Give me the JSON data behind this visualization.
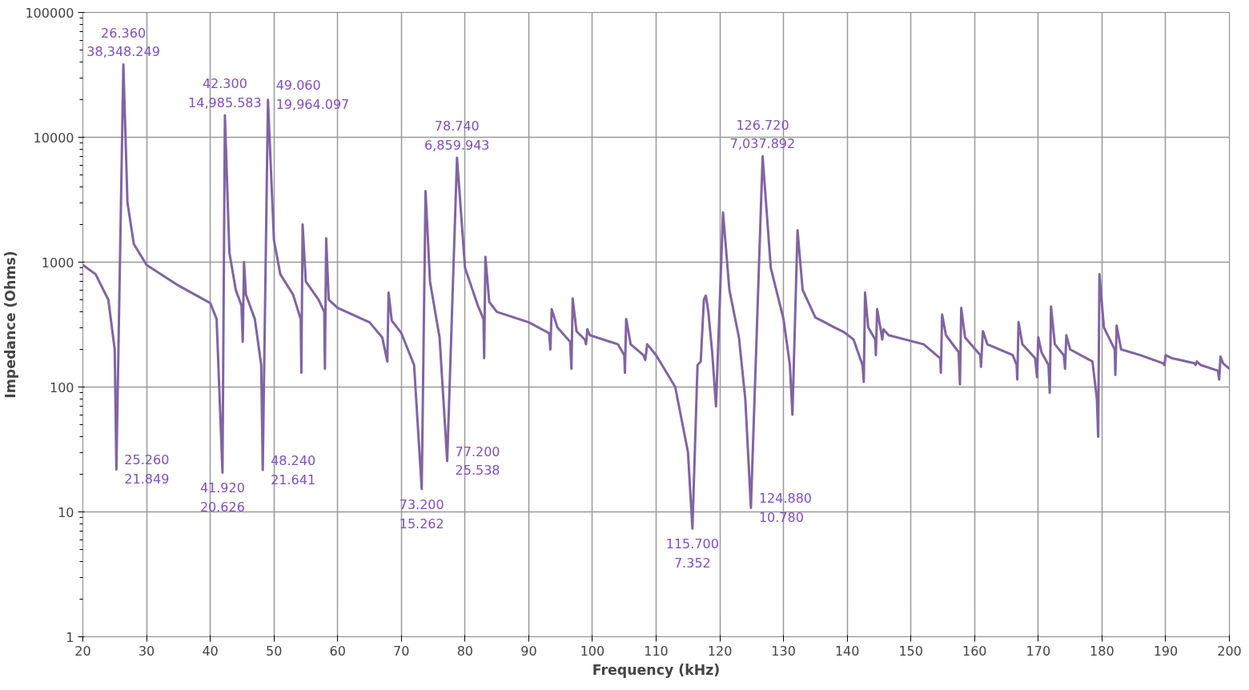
{
  "chart_data": {
    "type": "line",
    "xlabel": "Frequency (kHz)",
    "ylabel": "Impedance (Ohms)",
    "log": "y",
    "grid": true,
    "marker": "none",
    "line_style": "solid",
    "xlim": [
      20,
      200
    ],
    "xticks": [
      20,
      30,
      40,
      50,
      60,
      70,
      80,
      90,
      100,
      110,
      120,
      130,
      140,
      150,
      160,
      170,
      180,
      190,
      200
    ],
    "ylim": [
      1,
      100000
    ],
    "yticks": [
      1,
      10,
      100,
      1000,
      10000,
      100000
    ],
    "x": [
      20,
      22,
      24,
      25,
      25.26,
      26.36,
      27,
      28,
      30,
      35,
      40,
      41,
      41.92,
      42.3,
      43,
      44,
      44.9,
      45.1,
      45.3,
      45.6,
      47,
      48,
      48.24,
      49.06,
      50,
      51,
      53,
      54.2,
      54.3,
      54.5,
      55,
      57,
      57.9,
      58,
      58.2,
      58.6,
      60,
      65,
      67,
      67.8,
      68,
      68.5,
      70,
      72,
      73.2,
      73.8,
      74.5,
      76,
      77.2,
      78.74,
      80,
      82,
      82.9,
      83.0,
      83.2,
      83.8,
      85,
      90,
      93.2,
      93.4,
      93.6,
      94.5,
      96.5,
      96.7,
      96.9,
      97.5,
      98.8,
      99.0,
      99.2,
      99.6,
      104,
      105,
      105.1,
      105.3,
      106,
      108,
      108.3,
      108.6,
      110,
      113,
      115,
      115.7,
      116.5,
      117,
      117.5,
      117.8,
      118.2,
      118.8,
      119.4,
      120.5,
      121.5,
      123,
      124,
      124.88,
      126.72,
      128,
      130,
      131,
      131.4,
      132.2,
      133,
      135,
      136,
      138,
      139.5,
      141,
      142.4,
      142.6,
      142.8,
      143.3,
      144.4,
      144.5,
      144.7,
      145.3,
      145.5,
      145.7,
      146.5,
      152,
      154.6,
      154.7,
      154.9,
      155.5,
      157.5,
      157.7,
      157.9,
      158.5,
      160.9,
      161,
      161.3,
      162,
      166,
      166.6,
      166.7,
      166.9,
      167.5,
      169.5,
      169.8,
      170,
      170.5,
      171.6,
      171.8,
      172,
      172.6,
      174,
      174.2,
      174.4,
      175,
      178.5,
      179.2,
      179.4,
      179.6,
      180.3,
      182,
      182.1,
      182.3,
      183,
      186,
      189.6,
      189.8,
      190,
      191,
      194.5,
      194.7,
      194.9,
      195.5,
      198.2,
      198.4,
      198.6,
      199,
      200
    ],
    "series": [
      {
        "color": "#8064a2",
        "values": [
          950,
          800,
          500,
          200,
          21.849,
          38348.249,
          3000,
          1400,
          950,
          650,
          470,
          350,
          20.626,
          14985.583,
          1200,
          600,
          450,
          230,
          1000,
          550,
          350,
          150,
          21.641,
          19964.097,
          1500,
          800,
          550,
          350,
          130,
          2000,
          700,
          500,
          400,
          140,
          1550,
          500,
          430,
          330,
          250,
          160,
          570,
          340,
          270,
          150,
          15.262,
          3700,
          700,
          250,
          25.538,
          6859.943,
          900,
          450,
          350,
          170,
          1100,
          480,
          400,
          330,
          270,
          200,
          420,
          300,
          230,
          140,
          510,
          280,
          240,
          220,
          290,
          260,
          220,
          180,
          130,
          350,
          220,
          180,
          165,
          220,
          180,
          100,
          30,
          7.352,
          150,
          160,
          500,
          540,
          400,
          190,
          70,
          2500,
          600,
          250,
          80,
          10.78,
          7037.892,
          900,
          350,
          150,
          60,
          1800,
          600,
          360,
          340,
          300,
          275,
          240,
          150,
          110,
          570,
          300,
          240,
          180,
          420,
          280,
          240,
          290,
          260,
          220,
          170,
          130,
          380,
          260,
          190,
          105,
          430,
          250,
          180,
          145,
          280,
          220,
          180,
          150,
          115,
          330,
          220,
          170,
          120,
          250,
          190,
          150,
          90,
          440,
          220,
          180,
          140,
          260,
          200,
          160,
          80,
          40,
          800,
          300,
          200,
          125,
          310,
          200,
          180,
          155,
          150,
          180,
          170,
          155,
          150,
          160,
          150,
          135,
          115,
          175,
          155,
          140
        ]
      }
    ],
    "annotations": [
      {
        "text": "26.360\n38,348.249",
        "x": 26.36,
        "y": 38348.249
      },
      {
        "text": "25.260\n21.849",
        "x": 25.26,
        "y": 21.849
      },
      {
        "text": "42.300\n14,985.583",
        "x": 42.3,
        "y": 14985.583
      },
      {
        "text": "41.920\n20.626",
        "x": 41.92,
        "y": 20.626
      },
      {
        "text": "49.060\n19,964.097",
        "x": 49.06,
        "y": 19964.097
      },
      {
        "text": "48.240\n21.641",
        "x": 48.24,
        "y": 21.641
      },
      {
        "text": "73.200\n15.262",
        "x": 73.2,
        "y": 15.262
      },
      {
        "text": "77.200\n25.538",
        "x": 77.2,
        "y": 25.538
      },
      {
        "text": "78.740\n6,859.943",
        "x": 78.74,
        "y": 6859.943
      },
      {
        "text": "115.700\n7.352",
        "x": 115.7,
        "y": 7.352
      },
      {
        "text": "124.880\n10.780",
        "x": 124.88,
        "y": 10.78
      },
      {
        "text": "126.720\n7,037.892",
        "x": 126.72,
        "y": 7037.892
      }
    ]
  }
}
